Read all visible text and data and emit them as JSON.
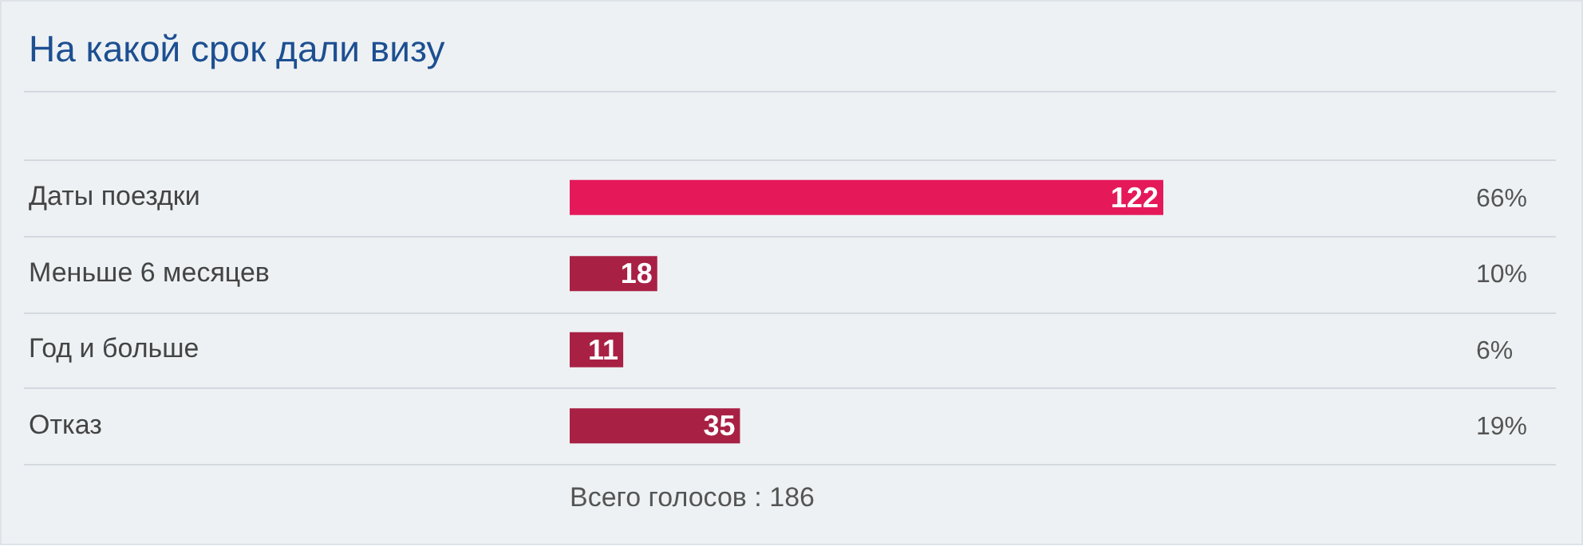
{
  "chart_data": {
    "type": "bar",
    "orientation": "horizontal",
    "title": "На какой срок дали визу",
    "categories": [
      "Даты поездки",
      "Меньше 6 месяцев",
      "Год и больше",
      "Отказ"
    ],
    "values": [
      122,
      18,
      11,
      35
    ],
    "colors": [
      "#e5195a",
      "#a82145",
      "#a82145",
      "#a82145"
    ],
    "data_labels": true,
    "grid": "y",
    "legend": false,
    "annotations": [
      "66%",
      "10%",
      "6%",
      "19%",
      "Всего голосов : 186"
    ]
  }
}
